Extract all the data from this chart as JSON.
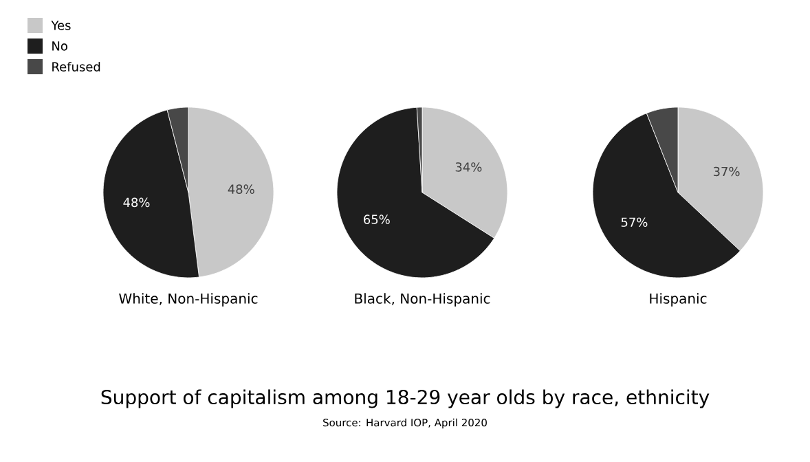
{
  "chart_data": [
    {
      "type": "pie",
      "xlabel": "White, Non-Hispanic",
      "categories": [
        "Yes",
        "No",
        "Refused"
      ],
      "values": [
        48,
        48,
        4
      ],
      "colors": [
        "#c8c8c8",
        "#1e1e1e",
        "#484848"
      ],
      "value_labels": [
        "48%",
        "48%",
        null
      ],
      "legend": "top left"
    },
    {
      "type": "pie",
      "xlabel": "Black, Non-Hispanic",
      "categories": [
        null,
        null,
        null
      ],
      "values": [
        34,
        65,
        1
      ],
      "colors": [
        "#c8c8c8",
        "#1e1e1e",
        "#484848"
      ],
      "value_labels": [
        "34%",
        "65%",
        null
      ],
      "title": "Support of capitalism among 18-29 year olds by race, ethnicity",
      "annotations": [
        "Source: Harvard IOP, April 2020"
      ]
    },
    {
      "type": "pie",
      "xlabel": "Hispanic",
      "categories": [
        null,
        null,
        null
      ],
      "values": [
        37,
        57,
        6
      ],
      "colors": [
        "#c8c8c8",
        "#1e1e1e",
        "#484848"
      ],
      "value_labels": [
        "37%",
        "57%",
        null
      ]
    }
  ]
}
